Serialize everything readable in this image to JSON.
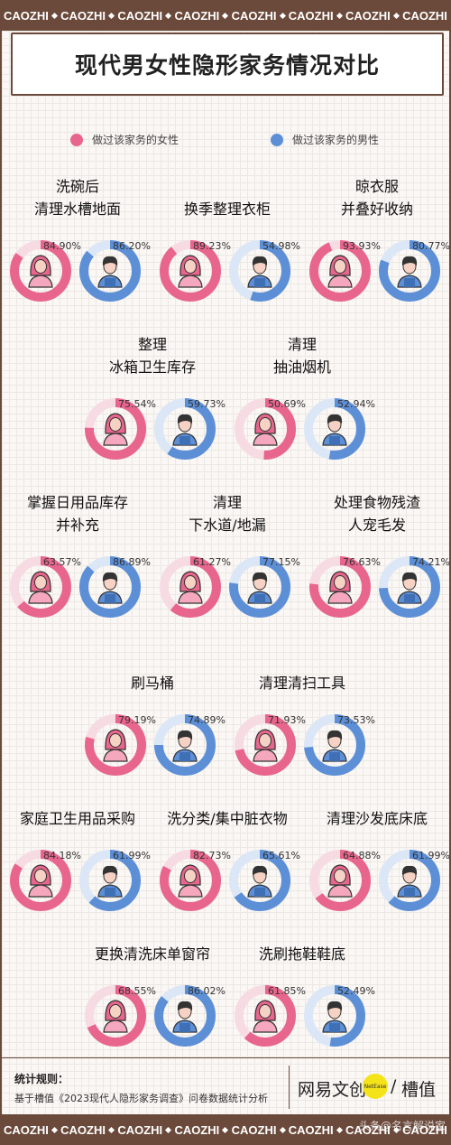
{
  "header_band": "CAOZHI",
  "title": "现代男女性隐形家务情况对比",
  "legend": {
    "female": "做过该家务的女性",
    "male": "做过该家务的男性"
  },
  "colors": {
    "female": "#e8668d",
    "female_light": "#f7dbe3",
    "male": "#5d8fd6",
    "male_light": "#dbe7f6",
    "frame": "#6b4a3c"
  },
  "icons": {
    "female": "woman-avatar-icon",
    "male": "man-avatar-icon"
  },
  "chart_data": {
    "type": "donut-pairs",
    "title": "现代男女性隐形家务情况对比",
    "unit": "%",
    "series_names": [
      "做过该家务的女性",
      "做过该家务的男性"
    ],
    "tasks": [
      {
        "name": [
          "洗碗后",
          "清理水槽地面"
        ],
        "female": 84.9,
        "male": 86.2,
        "female_label": "84.90%",
        "male_label": "86.20%"
      },
      {
        "name": [
          "换季整理衣柜"
        ],
        "female": 89.23,
        "male": 54.98,
        "female_label": "89.23%",
        "male_label": "54.98%"
      },
      {
        "name": [
          "晾衣服",
          "并叠好收纳"
        ],
        "female": 93.93,
        "male": 80.77,
        "female_label": "93.93%",
        "male_label": "80.77%"
      },
      {
        "name": [
          "整理",
          "冰箱卫生库存"
        ],
        "female": 75.54,
        "male": 59.73,
        "female_label": "75.54%",
        "male_label": "59.73%"
      },
      {
        "name": [
          "清理",
          "抽油烟机"
        ],
        "female": 50.69,
        "male": 52.94,
        "female_label": "50.69%",
        "male_label": "52.94%"
      },
      {
        "name": [
          "掌握日用品库存",
          "并补充"
        ],
        "female": 63.57,
        "male": 86.89,
        "female_label": "63.57%",
        "male_label": "86.89%"
      },
      {
        "name": [
          "清理",
          "下水道/地漏"
        ],
        "female": 61.27,
        "male": 77.15,
        "female_label": "61.27%",
        "male_label": "77.15%"
      },
      {
        "name": [
          "处理食物残渣",
          "人宠毛发"
        ],
        "female": 76.63,
        "male": 74.21,
        "female_label": "76.63%",
        "male_label": "74.21%"
      },
      {
        "name": [
          "刷马桶"
        ],
        "female": 79.19,
        "male": 74.89,
        "female_label": "79.19%",
        "male_label": "74.89%"
      },
      {
        "name": [
          "清理清扫工具"
        ],
        "female": 71.93,
        "male": 73.53,
        "female_label": "71.93%",
        "male_label": "73.53%"
      },
      {
        "name": [
          "家庭卫生用品采购"
        ],
        "female": 84.18,
        "male": 61.99,
        "female_label": "84.18%",
        "male_label": "61.99%"
      },
      {
        "name": [
          "洗分类/集中脏衣物"
        ],
        "female": 82.73,
        "male": 65.61,
        "female_label": "82.73%",
        "male_label": "65.61%"
      },
      {
        "name": [
          "清理沙发底床底"
        ],
        "female": 64.88,
        "male": 61.99,
        "female_label": "64.88%",
        "male_label": "61.99%"
      },
      {
        "name": [
          "更换清洗床单窗帘"
        ],
        "female": 68.55,
        "male": 86.02,
        "female_label": "68.55%",
        "male_label": "86.02%"
      },
      {
        "name": [
          "洗刷拖鞋鞋底"
        ],
        "female": 61.85,
        "male": 52.49,
        "female_label": "61.85%",
        "male_label": "52.49%"
      }
    ]
  },
  "footer": {
    "rule_title": "统计规则：",
    "source": "基于槽值《2023现代人隐形家务调查》问卷数据统计分析",
    "brand_left": "网易文创",
    "brand_badge": "NetEase",
    "brand_sep": "/",
    "brand_right": "槽值",
    "watermark": "头条@名言解说家"
  }
}
